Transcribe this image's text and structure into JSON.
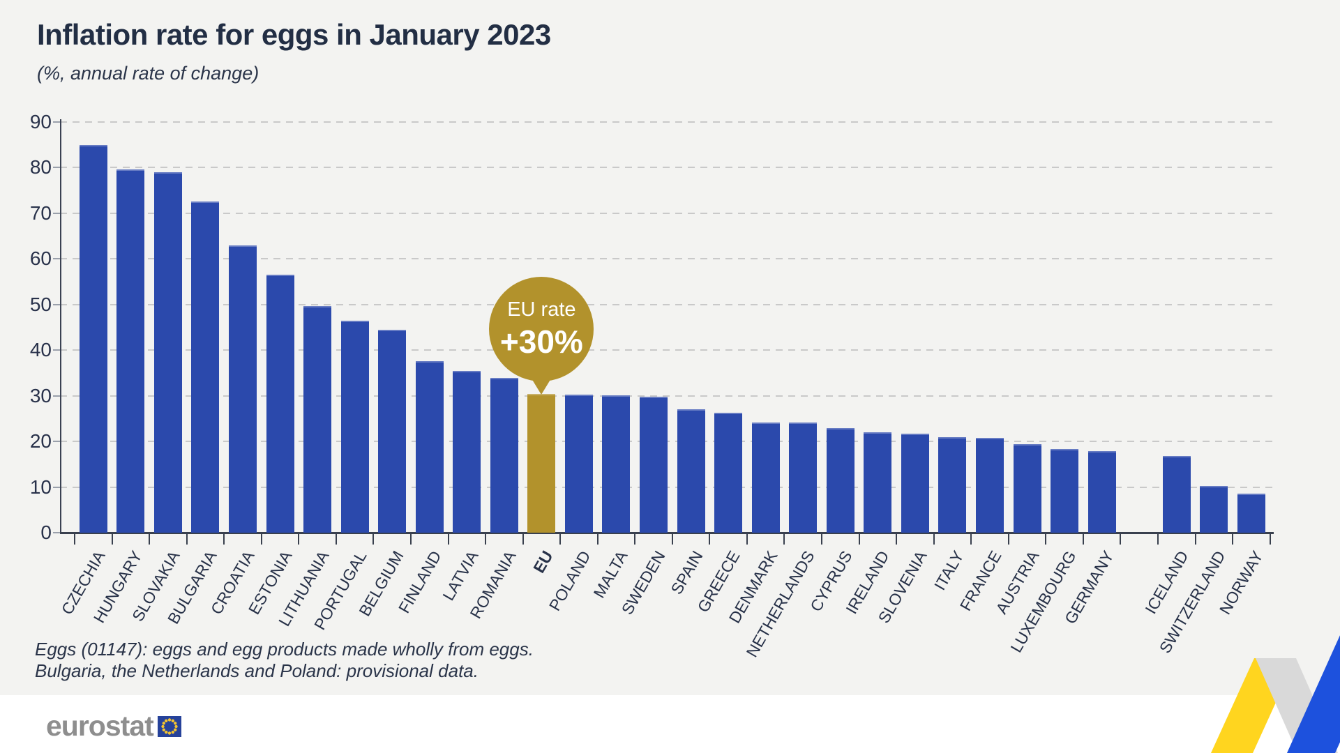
{
  "header": {
    "title": "Inflation rate for eggs in January 2023",
    "subtitle": "(%, annual rate of change)"
  },
  "callout": {
    "label": "EU rate",
    "value": "+30%"
  },
  "footnotes": {
    "line1": "Eggs (01147): eggs and egg products made wholly from eggs.",
    "line2": "Bulgaria, the Netherlands and Poland: provisional data."
  },
  "footer": {
    "logo_text": "eurostat"
  },
  "colors": {
    "background": "#F3F3F1",
    "bar_blue": "#2B49AC",
    "bar_gold": "#B2922C",
    "text_dark": "#273148",
    "gridline": "#C9C9C9",
    "axis": "#39404E",
    "footer_bg": "#FFFFFF",
    "logo_gray": "#8E8E8E",
    "flag_blue": "#26429A",
    "flag_star": "#F4C430",
    "ribbon_yellow": "#FFD51F",
    "ribbon_silver": "#D9D9D9",
    "ribbon_blue": "#1D51DD"
  },
  "chart_data": {
    "type": "bar",
    "title": "Inflation rate for eggs in January 2023",
    "unit": "%, annual rate of change",
    "ylim": [
      0,
      90
    ],
    "ytick_step": 10,
    "grid": "horizontal-dashed",
    "legend": "none",
    "annotation": {
      "target": "EU",
      "label": "EU rate",
      "value": "+30%"
    },
    "bars": [
      {
        "label": "CZECHIA",
        "value": 85
      },
      {
        "label": "HUNGARY",
        "value": 79.6
      },
      {
        "label": "SLOVAKIA",
        "value": 79
      },
      {
        "label": "BULGARIA",
        "value": 72.6
      },
      {
        "label": "CROATIA",
        "value": 63
      },
      {
        "label": "ESTONIA",
        "value": 56.6
      },
      {
        "label": "LITHUANIA",
        "value": 49.6
      },
      {
        "label": "PORTUGAL",
        "value": 46.4
      },
      {
        "label": "BELGIUM",
        "value": 44.5
      },
      {
        "label": "FINLAND",
        "value": 37.6
      },
      {
        "label": "LATVIA",
        "value": 35.5
      },
      {
        "label": "ROMANIA",
        "value": 33.9
      },
      {
        "label": "EU",
        "value": 30.4,
        "highlight": true
      },
      {
        "label": "POLAND",
        "value": 30.2
      },
      {
        "label": "MALTA",
        "value": 30.1
      },
      {
        "label": "SWEDEN",
        "value": 29.8
      },
      {
        "label": "SPAIN",
        "value": 27.1
      },
      {
        "label": "GREECE",
        "value": 26.3
      },
      {
        "label": "DENMARK",
        "value": 24.2
      },
      {
        "label": "NETHERLANDS",
        "value": 24.1
      },
      {
        "label": "CYPRUS",
        "value": 22.9
      },
      {
        "label": "IRELAND",
        "value": 22.0
      },
      {
        "label": "SLOVENIA",
        "value": 21.7
      },
      {
        "label": "ITALY",
        "value": 20.9
      },
      {
        "label": "FRANCE",
        "value": 20.8
      },
      {
        "label": "AUSTRIA",
        "value": 19.4
      },
      {
        "label": "LUXEMBOURG",
        "value": 18.3
      },
      {
        "label": "GERMANY",
        "value": 17.9
      },
      {
        "label": "",
        "value": null,
        "spacer": true
      },
      {
        "label": "ICELAND",
        "value": 16.8
      },
      {
        "label": "SWITZERLAND",
        "value": 10.2
      },
      {
        "label": "NORWAY",
        "value": 8.6
      }
    ]
  }
}
